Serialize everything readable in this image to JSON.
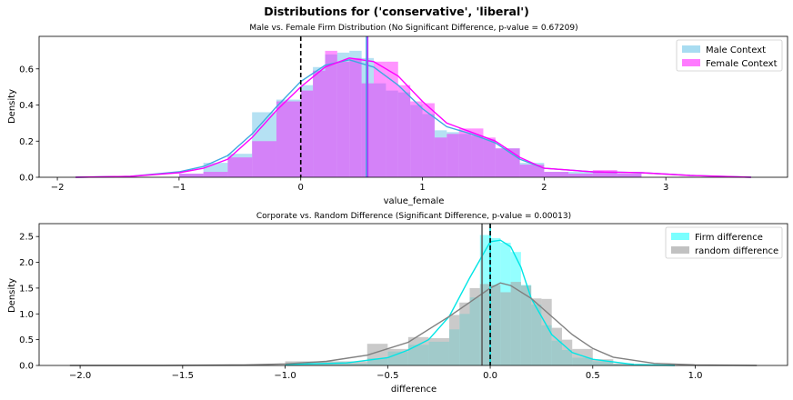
{
  "figure": {
    "suptitle": "Distributions for ('conservative', 'liberal')"
  },
  "chart_data": [
    {
      "type": "histogram",
      "title": "Male vs. Female Firm Distribution (No Significant Difference, p-value = 0.67209)",
      "xlabel": "value_female",
      "ylabel": "Density",
      "xlim": [
        -2.15,
        4.0
      ],
      "ylim": [
        0,
        0.78
      ],
      "xticks": [
        -2,
        -1,
        0,
        1,
        2,
        3
      ],
      "xtick_labels": [
        "−2",
        "−1",
        "0",
        "1",
        "2",
        "3"
      ],
      "yticks": [
        0.0,
        0.2,
        0.4,
        0.6
      ],
      "ytick_labels": [
        "0.0",
        "0.2",
        "0.4",
        "0.6"
      ],
      "grid": false,
      "legend_position": "top-right",
      "bin_edges": [
        -1.0,
        -0.8,
        -0.6,
        -0.4,
        -0.2,
        0.0,
        0.1,
        0.2,
        0.3,
        0.4,
        0.5,
        0.6,
        0.7,
        0.8,
        0.9,
        1.0,
        1.1,
        1.2,
        1.3,
        1.4,
        1.5,
        1.6,
        1.8,
        2.0,
        2.2,
        2.4,
        2.6,
        2.8
      ],
      "series": [
        {
          "name": "Male Context",
          "color": "#87CEEB",
          "values": [
            0.02,
            0.08,
            0.13,
            0.36,
            0.43,
            0.51,
            0.61,
            0.68,
            0.69,
            0.7,
            0.66,
            0.52,
            0.48,
            0.47,
            0.4,
            0.35,
            0.26,
            0.25,
            0.24,
            0.23,
            0.21,
            0.16,
            0.08,
            0.03,
            0.03,
            0.03,
            0.02
          ],
          "kde_x": [
            -1.85,
            -1.4,
            -1.0,
            -0.8,
            -0.6,
            -0.4,
            -0.2,
            0.0,
            0.2,
            0.4,
            0.6,
            0.8,
            1.0,
            1.2,
            1.4,
            1.6,
            1.8,
            2.0,
            2.4,
            2.8,
            3.2,
            3.7
          ],
          "kde_y": [
            0.0,
            0.005,
            0.03,
            0.06,
            0.12,
            0.24,
            0.39,
            0.53,
            0.62,
            0.65,
            0.61,
            0.51,
            0.38,
            0.28,
            0.24,
            0.19,
            0.1,
            0.05,
            0.03,
            0.025,
            0.01,
            0.0
          ],
          "mean": 0.54
        },
        {
          "name": "Female Context",
          "color": "#FF00FF",
          "values": [
            0.02,
            0.03,
            0.11,
            0.2,
            0.42,
            0.48,
            0.59,
            0.7,
            0.64,
            0.66,
            0.52,
            0.64,
            0.64,
            0.51,
            0.42,
            0.41,
            0.22,
            0.24,
            0.27,
            0.27,
            0.22,
            0.16,
            0.07,
            0.03,
            0.02,
            0.04,
            0.02
          ],
          "kde_x": [
            -1.85,
            -1.4,
            -1.0,
            -0.8,
            -0.6,
            -0.4,
            -0.2,
            0.0,
            0.2,
            0.4,
            0.6,
            0.8,
            1.0,
            1.2,
            1.4,
            1.6,
            1.8,
            2.0,
            2.4,
            2.8,
            3.2,
            3.7
          ],
          "kde_y": [
            0.0,
            0.005,
            0.025,
            0.05,
            0.1,
            0.22,
            0.37,
            0.5,
            0.61,
            0.66,
            0.64,
            0.56,
            0.42,
            0.3,
            0.25,
            0.2,
            0.11,
            0.05,
            0.03,
            0.025,
            0.01,
            0.0
          ],
          "mean": 0.55
        }
      ],
      "vlines": [
        {
          "x": 0,
          "style": "dashed",
          "color": "#000000"
        }
      ]
    },
    {
      "type": "histogram",
      "title": "Corporate vs. Random Difference (Significant Difference, p-value = 0.00013)",
      "xlabel": "difference",
      "ylabel": "Density",
      "xlim": [
        -2.2,
        1.45
      ],
      "ylim": [
        0,
        2.75
      ],
      "xticks": [
        -2.0,
        -1.5,
        -1.0,
        -0.5,
        0.0,
        0.5,
        1.0
      ],
      "xtick_labels": [
        "−2.0",
        "−1.5",
        "−1.0",
        "−0.5",
        "0.0",
        "0.5",
        "1.0"
      ],
      "yticks": [
        0.0,
        0.5,
        1.0,
        1.5,
        2.0,
        2.5
      ],
      "ytick_labels": [
        "0.0",
        "0.5",
        "1.0",
        "1.5",
        "2.0",
        "2.5"
      ],
      "grid": false,
      "legend_position": "top-right",
      "bin_edges": [
        -1.0,
        -0.6,
        -0.5,
        -0.4,
        -0.3,
        -0.2,
        -0.15,
        -0.1,
        -0.05,
        0.0,
        0.05,
        0.1,
        0.15,
        0.2,
        0.25,
        0.3,
        0.35,
        0.4,
        0.5,
        0.6,
        0.7
      ],
      "series": [
        {
          "name": "Firm difference",
          "color": "#00FFFF",
          "values": [
            0.04,
            0.14,
            0.27,
            0.4,
            0.46,
            0.7,
            1.0,
            1.32,
            2.53,
            2.47,
            2.38,
            2.2,
            1.56,
            1.18,
            0.78,
            0.48,
            0.3,
            0.15,
            0.08,
            0.03
          ],
          "kde_x": [
            -1.0,
            -0.7,
            -0.5,
            -0.4,
            -0.3,
            -0.2,
            -0.1,
            0.0,
            0.05,
            0.1,
            0.15,
            0.2,
            0.3,
            0.4,
            0.5,
            0.7,
            0.9
          ],
          "kde_y": [
            0.02,
            0.05,
            0.15,
            0.3,
            0.5,
            0.95,
            1.7,
            2.4,
            2.43,
            2.3,
            1.9,
            1.3,
            0.6,
            0.25,
            0.12,
            0.02,
            0.0
          ],
          "mean": 0.0
        },
        {
          "name": "random difference",
          "color": "#A9A9A9",
          "values": [
            0.08,
            0.42,
            0.32,
            0.55,
            0.53,
            0.98,
            1.22,
            1.5,
            1.58,
            1.56,
            1.42,
            1.62,
            1.55,
            1.3,
            1.29,
            0.73,
            0.5,
            0.32,
            0.12,
            0.04
          ],
          "kde_x": [
            -2.05,
            -1.6,
            -1.2,
            -1.0,
            -0.8,
            -0.6,
            -0.4,
            -0.2,
            0.0,
            0.05,
            0.1,
            0.2,
            0.3,
            0.4,
            0.5,
            0.6,
            0.8,
            1.0,
            1.3
          ],
          "kde_y": [
            0.0,
            0.0,
            0.01,
            0.03,
            0.08,
            0.2,
            0.45,
            0.95,
            1.5,
            1.6,
            1.55,
            1.3,
            0.95,
            0.6,
            0.33,
            0.16,
            0.04,
            0.01,
            0.0
          ],
          "mean": -0.04
        }
      ],
      "vlines": [
        {
          "x": 0,
          "style": "dashed",
          "color": "#000000"
        }
      ]
    }
  ]
}
